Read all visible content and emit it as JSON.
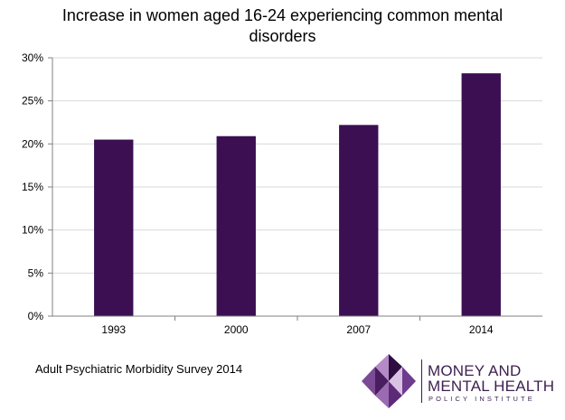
{
  "chart_data": {
    "type": "bar",
    "title": "Increase in women aged 16-24 experiencing common mental disorders",
    "categories": [
      "1993",
      "2000",
      "2007",
      "2014"
    ],
    "values": [
      20.5,
      20.9,
      22.2,
      28.2
    ],
    "ylim": [
      0,
      30
    ],
    "yticks": [
      0,
      5,
      10,
      15,
      20,
      25,
      30
    ],
    "ytick_labels": [
      "0%",
      "5%",
      "10%",
      "15%",
      "20%",
      "25%",
      "30%"
    ],
    "grid": true,
    "bar_color": "#3b0f52",
    "grid_color": "#d9d9d9",
    "axis_color": "#808080"
  },
  "source_note": "Adult Psychiatric Morbidity Survey 2014",
  "logo": {
    "line1": "MONEY AND",
    "line2": "MENTAL HEALTH",
    "line3": "POLICY INSTITUTE",
    "color": "#3d1f4f"
  }
}
